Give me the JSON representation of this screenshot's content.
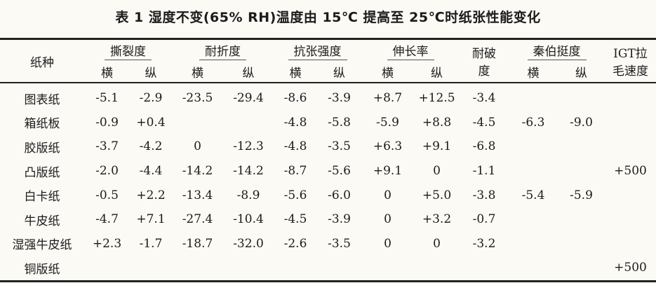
{
  "title": "表 1  湿度不变(65% RH)温度由 15℃ 提高至 25℃时纸张性能变化",
  "header": {
    "paper_type": "纸种",
    "groups": [
      "撕裂度",
      "耐折度",
      "抗张强度",
      "伸长率",
      "秦伯挺度"
    ],
    "burst": "耐破度",
    "igt": "IGT拉毛速度",
    "cross": "横",
    "machine": "纵"
  },
  "rows": [
    {
      "name": "图表纸",
      "values": [
        "-5.1",
        "-2.9",
        "-23.5",
        "-29.4",
        "-8.6",
        "-3.9",
        "+8.7",
        "+12.5",
        "-3.4",
        "",
        "",
        ""
      ]
    },
    {
      "name": "箱纸板",
      "values": [
        "-0.9",
        "+0.4",
        "",
        "",
        "-4.8",
        "-5.8",
        "-5.9",
        "+8.8",
        "-4.5",
        "-6.3",
        "-9.0",
        ""
      ]
    },
    {
      "name": "胶版纸",
      "values": [
        "-3.7",
        "-4.2",
        "0",
        "-12.3",
        "-4.8",
        "-3.5",
        "+6.3",
        "+9.1",
        "-6.8",
        "",
        "",
        ""
      ]
    },
    {
      "name": "凸版纸",
      "values": [
        "-2.0",
        "-4.4",
        "-14.2",
        "-14.2",
        "-8.7",
        "-5.6",
        "+9.1",
        "0",
        "-1.1",
        "",
        "",
        "+500"
      ]
    },
    {
      "name": "白卡纸",
      "values": [
        "-0.5",
        "+2.2",
        "-13.4",
        "-8.9",
        "-5.6",
        "-6.0",
        "0",
        "+5.0",
        "-3.8",
        "-5.4",
        "-5.9",
        ""
      ]
    },
    {
      "name": "牛皮纸",
      "values": [
        "-4.7",
        "+7.1",
        "-27.4",
        "-10.4",
        "-4.5",
        "-3.9",
        "0",
        "+3.2",
        "-0.7",
        "",
        "",
        ""
      ]
    },
    {
      "name": "湿强牛皮纸",
      "values": [
        "+2.3",
        "-1.7",
        "-18.7",
        "-32.0",
        "-2.6",
        "-3.5",
        "0",
        "0",
        "-3.2",
        "",
        "",
        ""
      ]
    },
    {
      "name": "铜版纸",
      "values": [
        "",
        "",
        "",
        "",
        "",
        "",
        "",
        "",
        "",
        "",
        "",
        "+500"
      ]
    }
  ]
}
